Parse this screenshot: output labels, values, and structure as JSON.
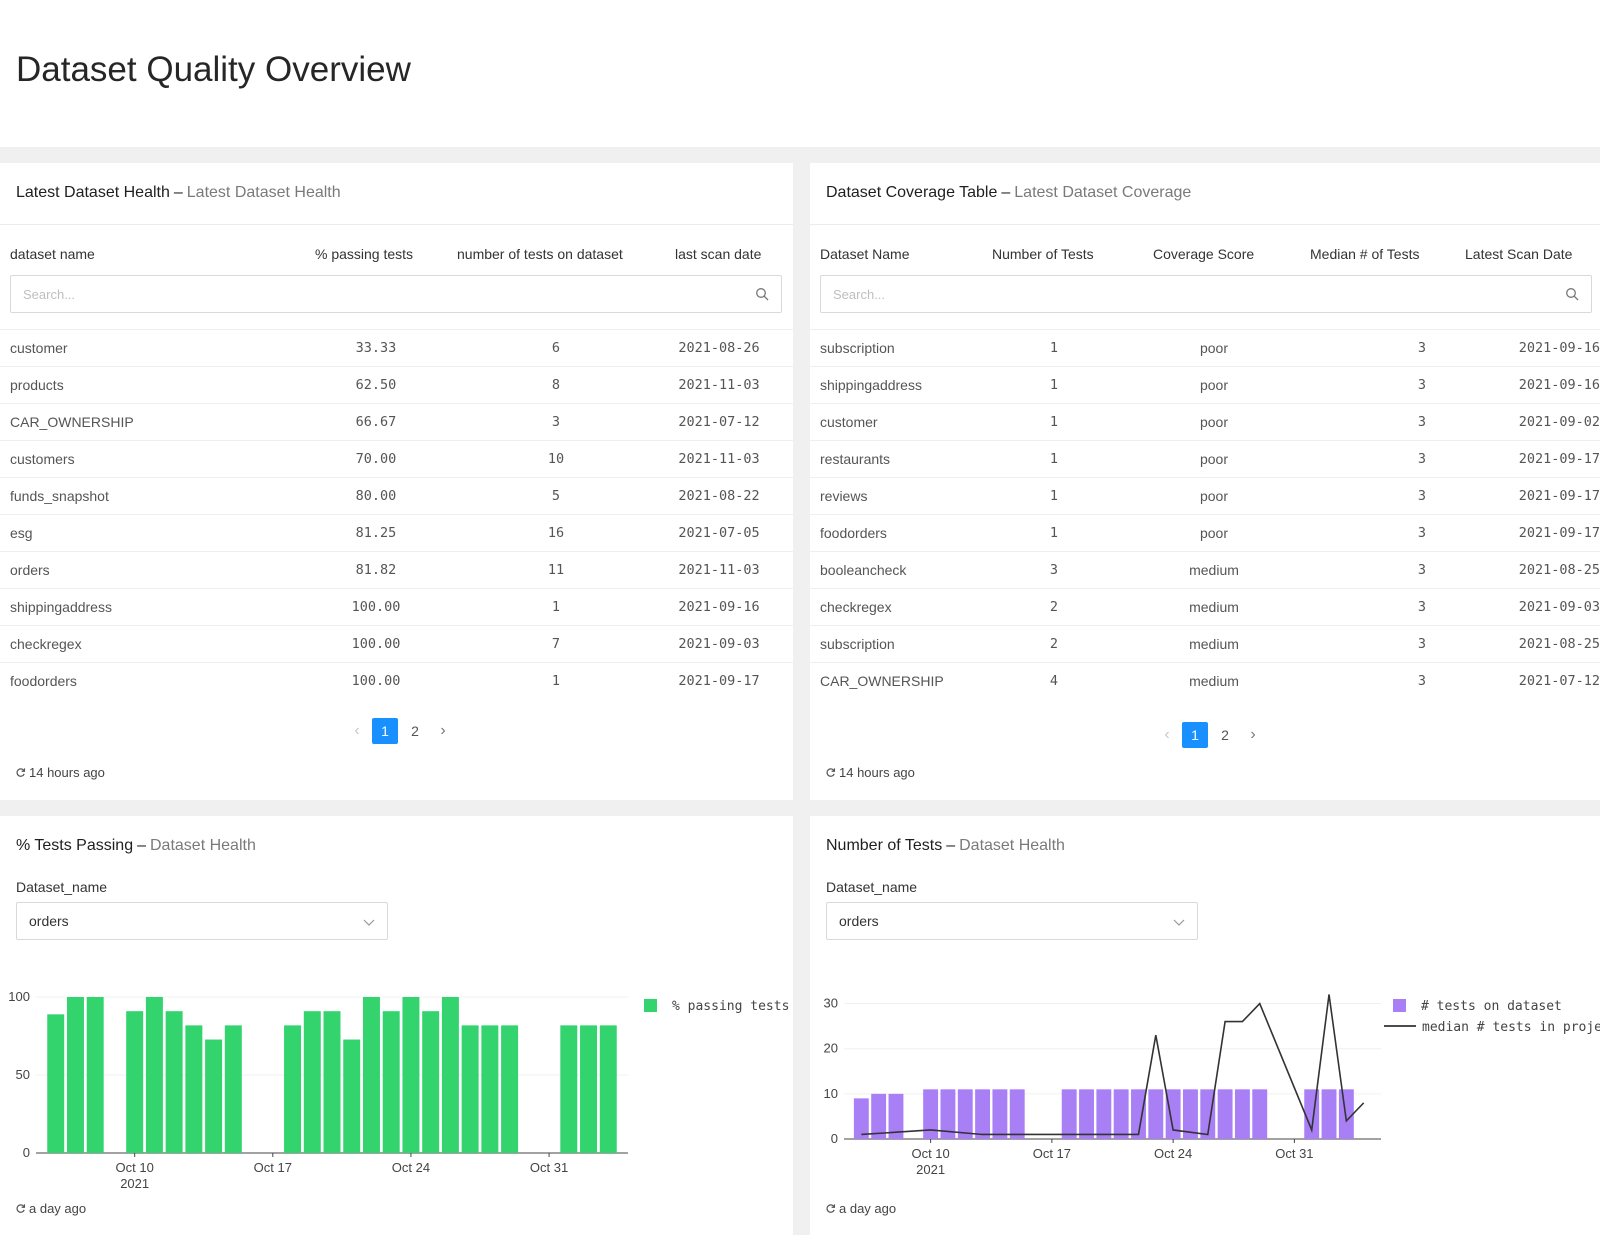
{
  "page": {
    "title": "Dataset Quality Overview"
  },
  "health_card": {
    "title": "Latest Dataset Health",
    "subtitle": "Latest Dataset Health",
    "columns": [
      "dataset name",
      "% passing tests",
      "number of tests on dataset",
      "last scan date"
    ],
    "search_placeholder": "Search...",
    "rows": [
      [
        "customer",
        "33.33",
        "6",
        "2021-08-26"
      ],
      [
        "products",
        "62.50",
        "8",
        "2021-11-03"
      ],
      [
        "CAR_OWNERSHIP",
        "66.67",
        "3",
        "2021-07-12"
      ],
      [
        "customers",
        "70.00",
        "10",
        "2021-11-03"
      ],
      [
        "funds_snapshot",
        "80.00",
        "5",
        "2021-08-22"
      ],
      [
        "esg",
        "81.25",
        "16",
        "2021-07-05"
      ],
      [
        "orders",
        "81.82",
        "11",
        "2021-11-03"
      ],
      [
        "shippingaddress",
        "100.00",
        "1",
        "2021-09-16"
      ],
      [
        "checkregex",
        "100.00",
        "7",
        "2021-09-03"
      ],
      [
        "foodorders",
        "100.00",
        "1",
        "2021-09-17"
      ]
    ],
    "pages": [
      "1",
      "2"
    ],
    "refreshed": "14 hours ago"
  },
  "coverage_card": {
    "title": "Dataset Coverage Table",
    "subtitle": "Latest Dataset Coverage",
    "columns": [
      "Dataset Name",
      "Number of Tests",
      "Coverage Score",
      "Median # of Tests",
      "Latest Scan Date"
    ],
    "search_placeholder": "Search...",
    "rows": [
      [
        "subscription",
        "1",
        "poor",
        "3",
        "2021-09-16"
      ],
      [
        "shippingaddress",
        "1",
        "poor",
        "3",
        "2021-09-16"
      ],
      [
        "customer",
        "1",
        "poor",
        "3",
        "2021-09-02"
      ],
      [
        "restaurants",
        "1",
        "poor",
        "3",
        "2021-09-17"
      ],
      [
        "reviews",
        "1",
        "poor",
        "3",
        "2021-09-17"
      ],
      [
        "foodorders",
        "1",
        "poor",
        "3",
        "2021-09-17"
      ],
      [
        "booleancheck",
        "3",
        "medium",
        "3",
        "2021-08-25"
      ],
      [
        "checkregex",
        "2",
        "medium",
        "3",
        "2021-09-03"
      ],
      [
        "subscription",
        "2",
        "medium",
        "3",
        "2021-08-25"
      ],
      [
        "CAR_OWNERSHIP",
        "4",
        "medium",
        "3",
        "2021-07-12"
      ]
    ],
    "pages": [
      "1",
      "2"
    ],
    "refreshed": "14 hours ago"
  },
  "passing_card": {
    "title": "% Tests Passing",
    "subtitle": "Dataset Health",
    "filter_label": "Dataset_name",
    "filter_value": "orders",
    "refreshed": "a day ago"
  },
  "tests_card": {
    "title": "Number of Tests",
    "subtitle": "Dataset Health",
    "filter_label": "Dataset_name",
    "filter_value": "orders",
    "refreshed": "a day ago"
  },
  "chart_data": [
    {
      "type": "bar",
      "x": [
        "2021-10-06",
        "2021-10-07",
        "2021-10-08",
        "2021-10-10",
        "2021-10-11",
        "2021-10-12",
        "2021-10-13",
        "2021-10-14",
        "2021-10-15",
        "2021-10-18",
        "2021-10-19",
        "2021-10-20",
        "2021-10-21",
        "2021-10-22",
        "2021-10-23",
        "2021-10-24",
        "2021-10-25",
        "2021-10-26",
        "2021-10-27",
        "2021-10-28",
        "2021-10-29",
        "2021-11-01",
        "2021-11-02",
        "2021-11-03"
      ],
      "series": [
        {
          "name": "% passing tests",
          "color": "#33d46e",
          "values": [
            88.89,
            100,
            100,
            90.91,
            100,
            90.91,
            81.82,
            72.73,
            81.82,
            81.82,
            90.91,
            90.91,
            72.73,
            100,
            90.91,
            100,
            90.91,
            100,
            81.82,
            81.82,
            81.82,
            81.82,
            81.82,
            81.82
          ]
        }
      ],
      "xticks": [
        [
          "2021-10-10",
          "Oct 10",
          "2021"
        ],
        [
          "2021-10-17",
          "Oct 17",
          ""
        ],
        [
          "2021-10-24",
          "Oct 24",
          ""
        ],
        [
          "2021-10-31",
          "Oct 31",
          ""
        ]
      ],
      "xrange": [
        "2021-10-05",
        "2021-11-04"
      ],
      "ylim": [
        0,
        100
      ],
      "yticks": [
        0,
        50,
        100
      ],
      "legend": "top-right"
    },
    {
      "type": "bar",
      "x": [
        "2021-10-06",
        "2021-10-07",
        "2021-10-08",
        "2021-10-10",
        "2021-10-11",
        "2021-10-12",
        "2021-10-13",
        "2021-10-14",
        "2021-10-15",
        "2021-10-18",
        "2021-10-19",
        "2021-10-20",
        "2021-10-21",
        "2021-10-22",
        "2021-10-23",
        "2021-10-24",
        "2021-10-25",
        "2021-10-26",
        "2021-10-27",
        "2021-10-28",
        "2021-10-29",
        "2021-11-01",
        "2021-11-02",
        "2021-11-03"
      ],
      "series": [
        {
          "name": "# tests on dataset",
          "color": "#a97ff5",
          "values": [
            9,
            10,
            10,
            11,
            11,
            11,
            11,
            11,
            11,
            11,
            11,
            11,
            11,
            11,
            11,
            11,
            11,
            11,
            11,
            11,
            11,
            11,
            11,
            11
          ]
        },
        {
          "name": "median # tests in project",
          "type": "line",
          "color": "#333333",
          "x": [
            "2021-10-06",
            "2021-10-08",
            "2021-10-10",
            "2021-10-13",
            "2021-10-15",
            "2021-10-18",
            "2021-10-21",
            "2021-10-22",
            "2021-10-23",
            "2021-10-24",
            "2021-10-26",
            "2021-10-27",
            "2021-10-28",
            "2021-10-29",
            "2021-11-01",
            "2021-11-02",
            "2021-11-03",
            "2021-11-04"
          ],
          "values": [
            1,
            1.5,
            2,
            1,
            1,
            1,
            1,
            1,
            23,
            2,
            1,
            26,
            26,
            30,
            2,
            32,
            4,
            8
          ]
        }
      ],
      "xticks": [
        [
          "2021-10-10",
          "Oct 10",
          "2021"
        ],
        [
          "2021-10-17",
          "Oct 17",
          ""
        ],
        [
          "2021-10-24",
          "Oct 24",
          ""
        ],
        [
          "2021-10-31",
          "Oct 31",
          ""
        ]
      ],
      "xrange": [
        "2021-10-05",
        "2021-11-05"
      ],
      "ylim": [
        0,
        33
      ],
      "yticks": [
        0,
        10,
        20,
        30
      ],
      "legend": "top-right"
    }
  ]
}
